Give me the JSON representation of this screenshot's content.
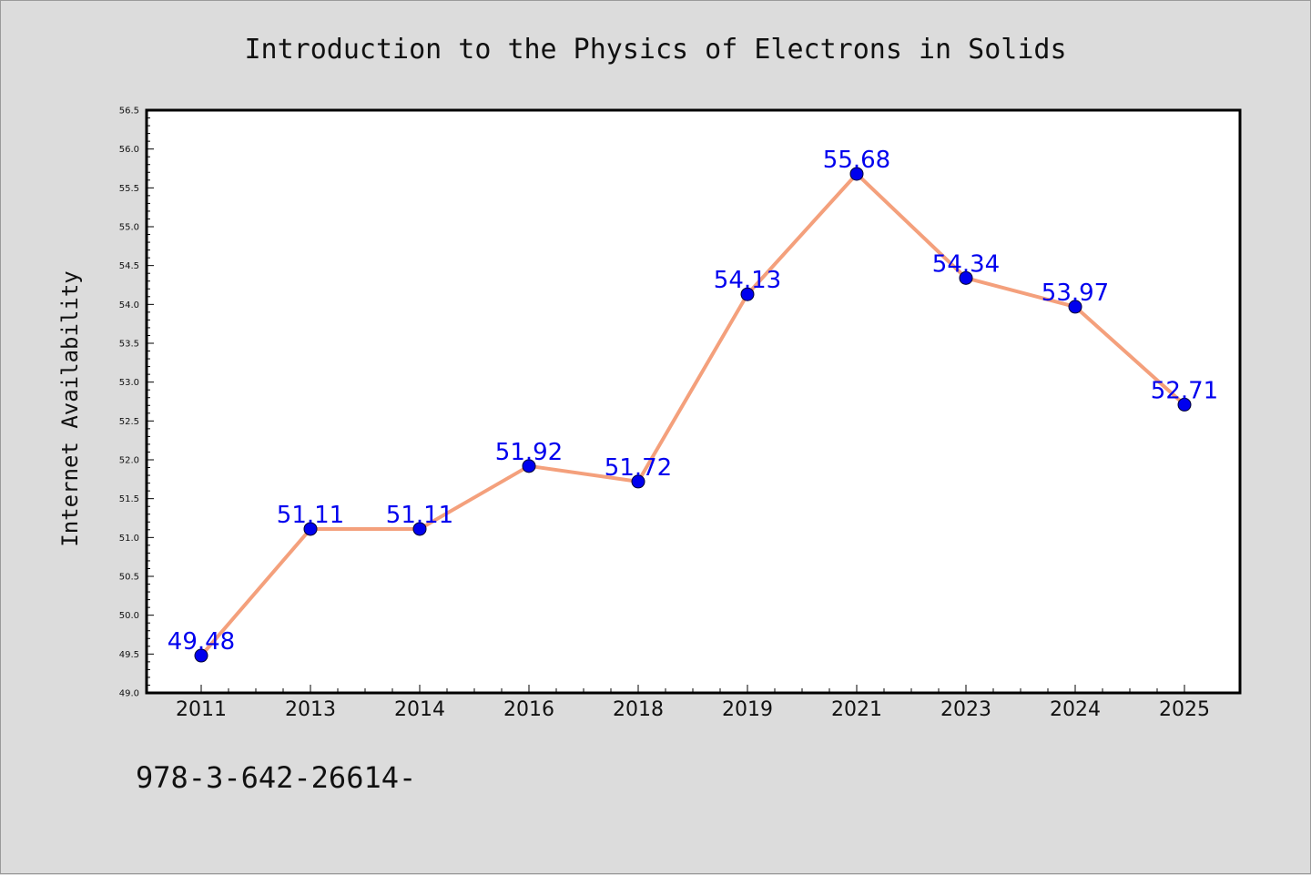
{
  "chart_data": {
    "type": "line",
    "title": "Introduction to the Physics of Electrons in Solids",
    "xlabel": "",
    "ylabel": "Internet Availability",
    "categories": [
      "2011",
      "2013",
      "2014",
      "2016",
      "2018",
      "2019",
      "2021",
      "2023",
      "2024",
      "2025"
    ],
    "values": [
      49.48,
      51.11,
      51.11,
      51.92,
      51.72,
      54.13,
      55.68,
      54.34,
      53.97,
      52.71
    ],
    "data_labels": [
      "49.48",
      "51.11",
      "51.11",
      "51.92",
      "51.72",
      "54.13",
      "55.68",
      "54.34",
      "53.97",
      "52.71"
    ],
    "ylim": [
      49.0,
      56.5
    ],
    "yticks": [
      "49.0",
      "49.5",
      "50.0",
      "50.5",
      "51.0",
      "51.5",
      "52.0",
      "52.5",
      "53.0",
      "53.5",
      "54.0",
      "54.5",
      "55.0",
      "55.5",
      "56.0",
      "56.5"
    ],
    "grid": false,
    "legend": "none",
    "line_color": "#f4a07c",
    "marker_color": "#0000ee",
    "label_color": "#0000ee",
    "background_color": "#dcdcdc",
    "plot_background_color": "#ffffff"
  },
  "footer": {
    "text": "978-3-642-26614-"
  }
}
